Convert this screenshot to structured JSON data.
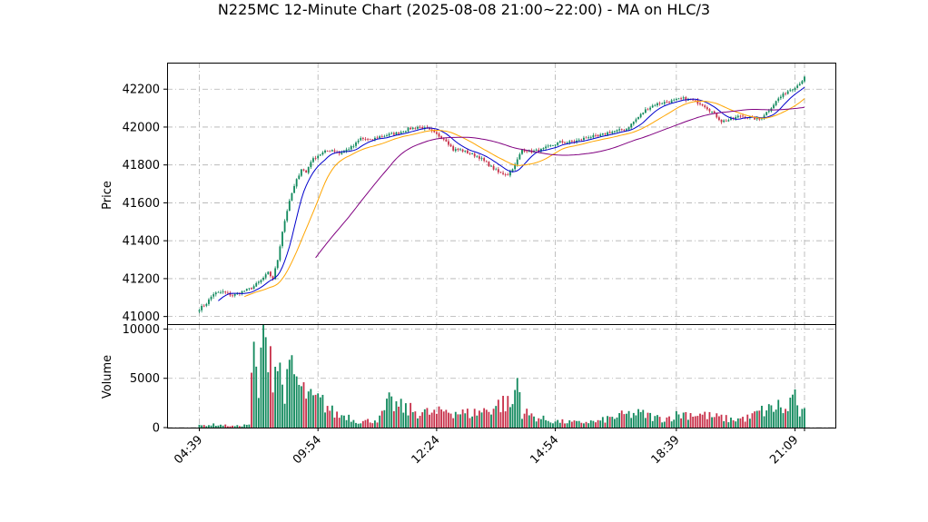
{
  "chart_data": {
    "type": "candlestick",
    "title": "N225MC 12-Minute Chart (2025-08-08 21:00~22:00) - MA on HLC/3",
    "price_panel": {
      "ylabel": "Price",
      "ylim": [
        40960,
        42340
      ],
      "yticks": [
        41000,
        41200,
        41400,
        41600,
        41800,
        42000,
        42200
      ],
      "ma_colors": [
        "#0000cc",
        "#ffa500",
        "#800080"
      ]
    },
    "volume_panel": {
      "ylabel": "Volume",
      "ylim": [
        0,
        10500
      ],
      "yticks": [
        0,
        5000,
        10000
      ]
    },
    "x_tick_labels": [
      "04:39",
      "09:54",
      "12:24",
      "14:54",
      "18:39",
      "21:09"
    ],
    "up_color": "#138a5e",
    "down_color": "#c8324b",
    "close_anchors": [
      [
        0,
        41040
      ],
      [
        3,
        41070
      ],
      [
        6,
        41120
      ],
      [
        10,
        41130
      ],
      [
        14,
        41110
      ],
      [
        18,
        41130
      ],
      [
        22,
        41150
      ],
      [
        26,
        41190
      ],
      [
        29,
        41230
      ],
      [
        31,
        41200
      ],
      [
        33,
        41300
      ],
      [
        35,
        41450
      ],
      [
        37,
        41560
      ],
      [
        39,
        41650
      ],
      [
        41,
        41720
      ],
      [
        43,
        41780
      ],
      [
        45,
        41760
      ],
      [
        47,
        41820
      ],
      [
        50,
        41850
      ],
      [
        53,
        41870
      ],
      [
        56,
        41880
      ],
      [
        59,
        41860
      ],
      [
        62,
        41880
      ],
      [
        65,
        41900
      ],
      [
        68,
        41940
      ],
      [
        72,
        41930
      ],
      [
        76,
        41950
      ],
      [
        80,
        41960
      ],
      [
        84,
        41970
      ],
      [
        88,
        41990
      ],
      [
        92,
        42000
      ],
      [
        96,
        41990
      ],
      [
        100,
        41960
      ],
      [
        104,
        41930
      ],
      [
        107,
        41880
      ],
      [
        110,
        41880
      ],
      [
        114,
        41860
      ],
      [
        118,
        41840
      ],
      [
        122,
        41800
      ],
      [
        126,
        41760
      ],
      [
        130,
        41750
      ],
      [
        133,
        41800
      ],
      [
        136,
        41880
      ],
      [
        140,
        41870
      ],
      [
        144,
        41880
      ],
      [
        148,
        41900
      ],
      [
        152,
        41920
      ],
      [
        156,
        41920
      ],
      [
        160,
        41930
      ],
      [
        164,
        41950
      ],
      [
        168,
        41950
      ],
      [
        172,
        41970
      ],
      [
        176,
        41980
      ],
      [
        180,
        41990
      ],
      [
        184,
        42040
      ],
      [
        188,
        42090
      ],
      [
        192,
        42120
      ],
      [
        196,
        42130
      ],
      [
        200,
        42140
      ],
      [
        204,
        42150
      ],
      [
        208,
        42140
      ],
      [
        212,
        42120
      ],
      [
        216,
        42080
      ],
      [
        220,
        42030
      ],
      [
        224,
        42040
      ],
      [
        228,
        42060
      ],
      [
        232,
        42050
      ],
      [
        236,
        42040
      ],
      [
        240,
        42090
      ],
      [
        244,
        42150
      ],
      [
        248,
        42190
      ],
      [
        252,
        42220
      ],
      [
        255,
        42260
      ]
    ],
    "volume_anchors": [
      [
        0,
        200
      ],
      [
        6,
        300
      ],
      [
        10,
        250
      ],
      [
        14,
        150
      ],
      [
        18,
        200
      ],
      [
        21,
        350
      ],
      [
        23,
        7800
      ],
      [
        25,
        2600
      ],
      [
        26,
        9500
      ],
      [
        28,
        7600
      ],
      [
        29,
        10200
      ],
      [
        31,
        6000
      ],
      [
        33,
        6600
      ],
      [
        35,
        4400
      ],
      [
        37,
        4200
      ],
      [
        39,
        5900
      ],
      [
        41,
        4800
      ],
      [
        43,
        3600
      ],
      [
        45,
        3500
      ],
      [
        47,
        2800
      ],
      [
        50,
        2700
      ],
      [
        53,
        2400
      ],
      [
        56,
        1600
      ],
      [
        59,
        1200
      ],
      [
        62,
        1300
      ],
      [
        65,
        800
      ],
      [
        68,
        600
      ],
      [
        72,
        700
      ],
      [
        76,
        900
      ],
      [
        80,
        2500
      ],
      [
        84,
        2100
      ],
      [
        88,
        1800
      ],
      [
        92,
        1600
      ],
      [
        96,
        1500
      ],
      [
        100,
        1400
      ],
      [
        104,
        1800
      ],
      [
        108,
        1600
      ],
      [
        112,
        1400
      ],
      [
        116,
        1500
      ],
      [
        120,
        1700
      ],
      [
        124,
        2100
      ],
      [
        128,
        2500
      ],
      [
        132,
        2200
      ],
      [
        134,
        5200
      ],
      [
        136,
        1600
      ],
      [
        140,
        1200
      ],
      [
        144,
        900
      ],
      [
        148,
        700
      ],
      [
        152,
        600
      ],
      [
        156,
        550
      ],
      [
        160,
        500
      ],
      [
        164,
        600
      ],
      [
        168,
        600
      ],
      [
        172,
        900
      ],
      [
        176,
        1100
      ],
      [
        180,
        1300
      ],
      [
        184,
        1400
      ],
      [
        188,
        1300
      ],
      [
        192,
        1000
      ],
      [
        196,
        900
      ],
      [
        200,
        1200
      ],
      [
        204,
        1400
      ],
      [
        208,
        1400
      ],
      [
        212,
        1300
      ],
      [
        216,
        1100
      ],
      [
        220,
        1000
      ],
      [
        224,
        800
      ],
      [
        228,
        900
      ],
      [
        232,
        1000
      ],
      [
        236,
        1600
      ],
      [
        240,
        1800
      ],
      [
        244,
        2200
      ],
      [
        248,
        1500
      ],
      [
        250,
        4100
      ],
      [
        252,
        1600
      ],
      [
        255,
        1400
      ]
    ],
    "bar_count": 256
  }
}
